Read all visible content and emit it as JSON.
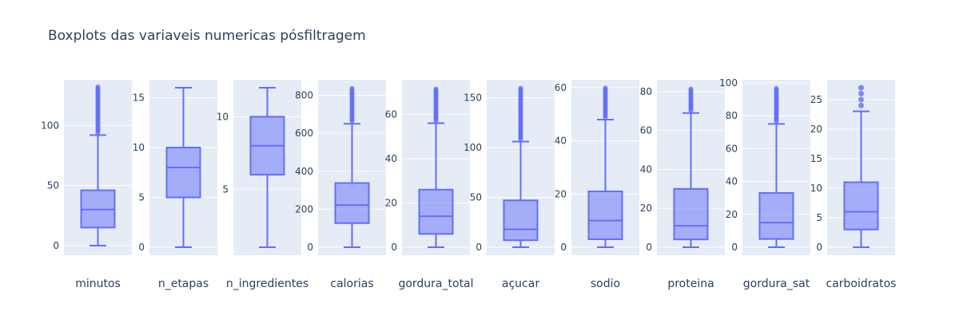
{
  "title": "Boxplots das variaveis numericas pósfiltragem",
  "colors": {
    "plot_bg": "#E5ECF6",
    "grid": "#ffffff",
    "box_line": "#636efa",
    "box_fill": "rgba(99,110,250,0.5)",
    "text": "#2a3f5f"
  },
  "chart_data": [
    {
      "type": "box",
      "name": "minutos",
      "q1": 15,
      "median": 30,
      "q3": 46,
      "whisker_low": 0,
      "whisker_high": 92,
      "outlier_max": 133,
      "ylim": [
        -8,
        138
      ],
      "yticks": [
        0,
        50,
        100
      ]
    },
    {
      "type": "box",
      "name": "n_etapas",
      "q1": 5,
      "median": 8,
      "q3": 10,
      "whisker_low": 0,
      "whisker_high": 16,
      "outlier_max": null,
      "ylim": [
        -0.8,
        16.8
      ],
      "yticks": [
        0,
        5,
        10,
        15
      ]
    },
    {
      "type": "box",
      "name": "n_ingredientes",
      "q1": 6,
      "median": 8,
      "q3": 10,
      "whisker_low": 1,
      "whisker_high": 12,
      "outlier_max": null,
      "ylim": [
        0.45,
        12.55
      ],
      "yticks": [
        5,
        10
      ]
    },
    {
      "type": "box",
      "name": "calorias",
      "q1": 127,
      "median": 222,
      "q3": 338,
      "whisker_low": 0,
      "whisker_high": 650,
      "outlier_max": 840,
      "ylim": [
        -42,
        882
      ],
      "yticks": [
        0,
        200,
        400,
        600,
        800
      ]
    },
    {
      "type": "box",
      "name": "gordura_total",
      "q1": 6,
      "median": 14,
      "q3": 26,
      "whisker_low": 0,
      "whisker_high": 56,
      "outlier_max": 72,
      "ylim": [
        -3.6,
        75.6
      ],
      "yticks": [
        0,
        20,
        40,
        60
      ]
    },
    {
      "type": "box",
      "name": "açucar",
      "q1": 7,
      "median": 18,
      "q3": 47,
      "whisker_low": 0,
      "whisker_high": 106,
      "outlier_max": 160,
      "ylim": [
        -8,
        168
      ],
      "yticks": [
        0,
        50,
        100,
        150
      ]
    },
    {
      "type": "box",
      "name": "sodio",
      "q1": 3,
      "median": 10,
      "q3": 21,
      "whisker_low": 0,
      "whisker_high": 48,
      "outlier_max": 60,
      "ylim": [
        -3,
        63
      ],
      "yticks": [
        0,
        20,
        40,
        60
      ]
    },
    {
      "type": "box",
      "name": "proteina",
      "q1": 4,
      "median": 11,
      "q3": 30,
      "whisker_low": 0,
      "whisker_high": 69,
      "outlier_max": 82,
      "ylim": [
        -4.1,
        86.1
      ],
      "yticks": [
        0,
        20,
        40,
        60,
        80
      ]
    },
    {
      "type": "box",
      "name": "gordura_sat",
      "q1": 5,
      "median": 15,
      "q3": 33,
      "whisker_low": 0,
      "whisker_high": 75,
      "outlier_max": 97,
      "ylim": [
        -4.85,
        101.85
      ],
      "yticks": [
        0,
        20,
        40,
        60,
        80,
        100
      ]
    },
    {
      "type": "box",
      "name": "carboidratos",
      "q1": 3,
      "median": 6,
      "q3": 11,
      "whisker_low": 0,
      "whisker_high": 23,
      "outlier_max": 27,
      "ylim": [
        -1.35,
        28.35
      ],
      "yticks": [
        0,
        5,
        10,
        15,
        20,
        25
      ],
      "outliers": [
        24,
        25,
        26,
        27
      ]
    }
  ]
}
